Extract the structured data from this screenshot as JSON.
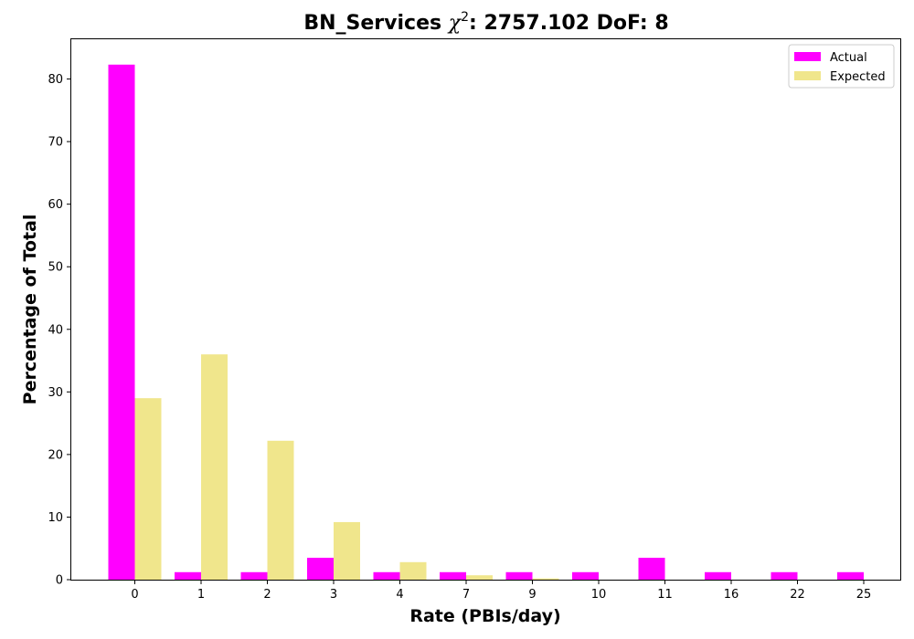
{
  "chart_data": {
    "type": "bar",
    "title": {
      "prefix": "BN_Services ",
      "symbol": "χ",
      "superscript": "2",
      "suffix": ": 2757.102 DoF: 8"
    },
    "xlabel": "Rate (PBIs/day)",
    "ylabel": "Percentage of Total",
    "categories": [
      "0",
      "1",
      "2",
      "3",
      "4",
      "7",
      "9",
      "10",
      "11",
      "16",
      "22",
      "25"
    ],
    "series": [
      {
        "name": "Actual",
        "color": "#ff00ff",
        "values": [
          82.3,
          1.2,
          1.2,
          3.5,
          1.2,
          1.2,
          1.2,
          1.2,
          3.5,
          1.2,
          1.2,
          1.2
        ]
      },
      {
        "name": "Expected",
        "color": "#f0e68c",
        "values": [
          29.0,
          36.0,
          22.2,
          9.2,
          2.8,
          0.7,
          0.2,
          0.0,
          0.0,
          0.0,
          0.0,
          0.0
        ]
      }
    ],
    "ylim": [
      0,
      86.5
    ],
    "yticks": [
      0,
      10,
      20,
      30,
      40,
      50,
      60,
      70,
      80
    ],
    "grid": false,
    "legend_position": "top-right"
  }
}
